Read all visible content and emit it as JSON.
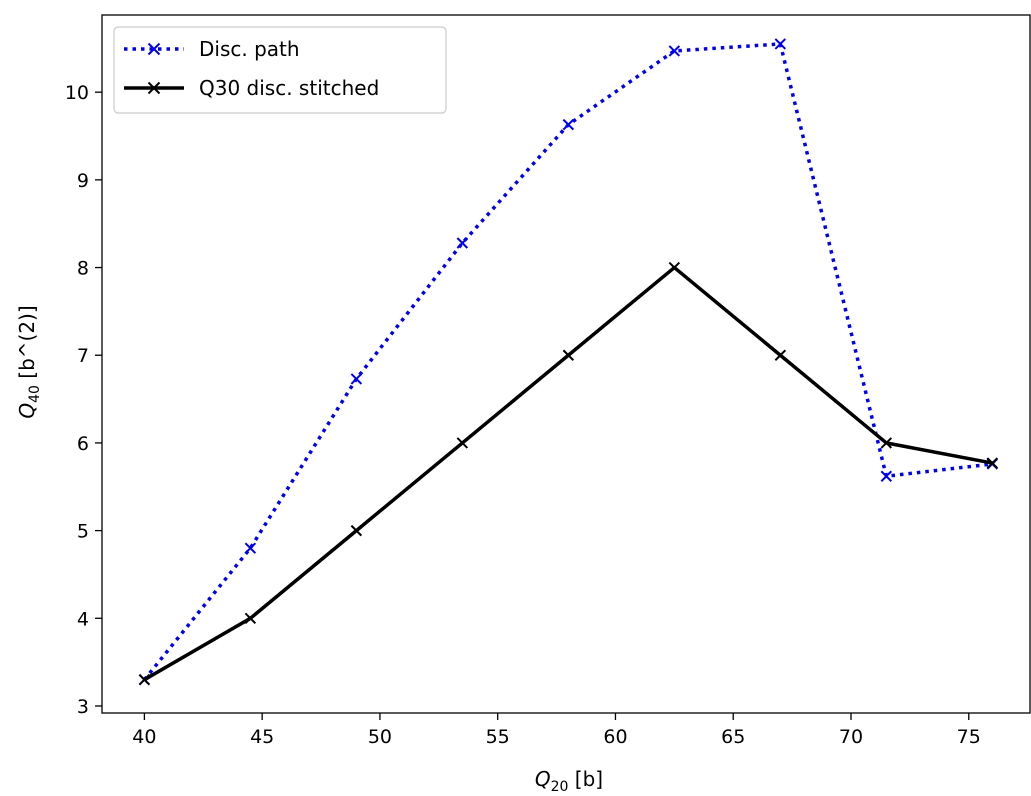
{
  "chart_data": {
    "type": "line",
    "title": "",
    "xlabel": {
      "main": "Q",
      "sub": "20",
      "unit": " [b]"
    },
    "ylabel": {
      "main": "Q",
      "sub": "40",
      "unit": " [b^(2)]"
    },
    "xlim": [
      38.2,
      77.6
    ],
    "ylim": [
      2.92,
      10.88
    ],
    "xticks": [
      40,
      45,
      50,
      55,
      60,
      65,
      70,
      75
    ],
    "yticks": [
      3,
      4,
      5,
      6,
      7,
      8,
      9,
      10
    ],
    "grid": false,
    "legend_position": "top-left",
    "series": [
      {
        "name": "Disc. path",
        "color": "#0000ee",
        "style": "dotted",
        "marker": "x",
        "x": [
          40,
          44.5,
          49,
          53.5,
          58,
          62.5,
          67,
          71.5,
          76
        ],
        "y": [
          3.3,
          4.8,
          6.73,
          8.28,
          9.63,
          10.47,
          10.55,
          5.62,
          5.76
        ]
      },
      {
        "name": "Q30 disc. stitched",
        "color": "#000000",
        "style": "solid",
        "marker": "x",
        "x": [
          40,
          44.5,
          49,
          53.5,
          58,
          62.5,
          67,
          71.5,
          76
        ],
        "y": [
          3.3,
          4.0,
          5.0,
          6.0,
          7.0,
          8.0,
          7.0,
          6.0,
          5.77
        ]
      }
    ]
  }
}
